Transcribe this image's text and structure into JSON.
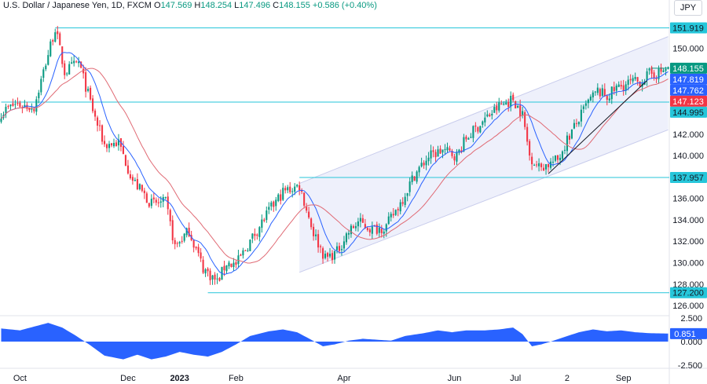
{
  "header": {
    "symbol": "U.S. Dollar / Japanese Yen, 1D, FXCM",
    "open_label": "O",
    "open": "147.569",
    "high_label": "H",
    "high": "148.254",
    "low_label": "L",
    "low": "147.496",
    "close_label": "C",
    "close": "148.155",
    "change": "+0.586 (+0.40%)",
    "currency": "JPY"
  },
  "colors": {
    "up": "#089981",
    "down": "#f23645",
    "level_line": "#26c6da",
    "blue_ma": "#2962ff",
    "red_ma": "#e06a74",
    "oscillator": "#2962ff",
    "channel_fill": "#eef0fb",
    "channel_line": "#c8ccec"
  },
  "chart_data": {
    "type": "candlestick",
    "title": "",
    "ylim": [
      125.2,
      153.2
    ],
    "y_ticks": [
      "126.000",
      "128.000",
      "130.000",
      "132.000",
      "134.000",
      "136.000",
      "138.000",
      "140.000",
      "142.000",
      "150.000"
    ],
    "y_tick_values": [
      126,
      128,
      130,
      132,
      134,
      136,
      138,
      140,
      142,
      150
    ],
    "x_ticks": [
      "Oct",
      "Dec",
      "2023",
      "Feb",
      "Apr",
      "Jun",
      "Jul",
      "2",
      "Sep"
    ],
    "x_tick_bars": [
      8,
      54,
      76,
      100,
      146,
      193,
      219,
      241,
      265
    ],
    "bar_count": 285,
    "anchors": [
      [
        0,
        144.0
      ],
      [
        6,
        144.8
      ],
      [
        14,
        144.5
      ],
      [
        20,
        149.5
      ],
      [
        23,
        151.9
      ],
      [
        27,
        147.8
      ],
      [
        33,
        148.7
      ],
      [
        40,
        143.5
      ],
      [
        44,
        141.0
      ],
      [
        50,
        141.2
      ],
      [
        56,
        137.7
      ],
      [
        64,
        135.5
      ],
      [
        70,
        135.6
      ],
      [
        74,
        131.5
      ],
      [
        80,
        133.0
      ],
      [
        86,
        129.5
      ],
      [
        92,
        128.2
      ],
      [
        96,
        130.0
      ],
      [
        100,
        129.8
      ],
      [
        106,
        132.0
      ],
      [
        114,
        134.8
      ],
      [
        120,
        136.6
      ],
      [
        127,
        137.2
      ],
      [
        133,
        132.8
      ],
      [
        138,
        130.4
      ],
      [
        143,
        131.0
      ],
      [
        147,
        132.6
      ],
      [
        152,
        133.8
      ],
      [
        158,
        133.1
      ],
      [
        164,
        133.4
      ],
      [
        170,
        135.6
      ],
      [
        176,
        138.2
      ],
      [
        182,
        139.9
      ],
      [
        188,
        140.5
      ],
      [
        194,
        140.0
      ],
      [
        198,
        141.6
      ],
      [
        206,
        143.4
      ],
      [
        212,
        144.6
      ],
      [
        218,
        145.3
      ],
      [
        222,
        143.8
      ],
      [
        225,
        140.0
      ],
      [
        229,
        138.9
      ],
      [
        233,
        139.2
      ],
      [
        237,
        139.6
      ],
      [
        241,
        141.5
      ],
      [
        246,
        143.4
      ],
      [
        250,
        145.0
      ],
      [
        254,
        146.0
      ],
      [
        258,
        145.5
      ],
      [
        262,
        146.3
      ],
      [
        268,
        146.8
      ],
      [
        272,
        146.9
      ],
      [
        276,
        147.6
      ],
      [
        280,
        147.7
      ],
      [
        284,
        148.2
      ]
    ],
    "levels": [
      {
        "label": "151.919",
        "value": 151.919,
        "from_bar": 23
      },
      {
        "label": "144.995",
        "value": 144.995,
        "from_bar": 0
      },
      {
        "label": "137.957",
        "value": 137.957,
        "from_bar": 127
      },
      {
        "label": "127.200",
        "value": 127.2,
        "from_bar": 88
      }
    ],
    "price_labels": [
      {
        "label": "148.155",
        "value": 148.155,
        "color": "#089981",
        "line": true
      },
      {
        "label": "147.819",
        "value": 147.819,
        "color": "#2962ff",
        "line": false
      },
      {
        "label": "147.762",
        "value": 147.762,
        "color": "#2962ff",
        "line": false
      },
      {
        "label": "147.123",
        "value": 147.123,
        "color": "#f23645",
        "line": false
      }
    ],
    "channel": {
      "start_bar": 127,
      "end_bar": 285,
      "lower_start": 129.1,
      "lower_end": 142.4,
      "upper_start": 137.4,
      "upper_end": 151.1
    },
    "trendline": {
      "from": [
        233,
        138.3
      ],
      "to": [
        275,
        147.0
      ]
    },
    "oscillator": {
      "ylim": [
        -2.6,
        2.6
      ],
      "ticks": [
        "2.500",
        "0.000",
        "-2.500"
      ],
      "tick_values": [
        2.5,
        0,
        -2.5
      ],
      "last_label": "0.851",
      "last_value": 0.851,
      "anchors": [
        [
          0,
          1.4
        ],
        [
          8,
          1.2
        ],
        [
          14,
          1.6
        ],
        [
          20,
          2.0
        ],
        [
          26,
          1.5
        ],
        [
          32,
          0.6
        ],
        [
          38,
          -0.4
        ],
        [
          44,
          -1.5
        ],
        [
          52,
          -1.9
        ],
        [
          58,
          -1.4
        ],
        [
          64,
          -1.9
        ],
        [
          70,
          -1.6
        ],
        [
          76,
          -1.1
        ],
        [
          82,
          -1.4
        ],
        [
          88,
          -1.6
        ],
        [
          94,
          -1.1
        ],
        [
          100,
          -0.3
        ],
        [
          106,
          0.6
        ],
        [
          114,
          1.1
        ],
        [
          120,
          1.3
        ],
        [
          126,
          1.0
        ],
        [
          132,
          0.2
        ],
        [
          137,
          -0.5
        ],
        [
          142,
          -0.3
        ],
        [
          148,
          0.1
        ],
        [
          154,
          0.3
        ],
        [
          160,
          0.2
        ],
        [
          166,
          0.1
        ],
        [
          172,
          0.6
        ],
        [
          180,
          0.9
        ],
        [
          186,
          1.2
        ],
        [
          192,
          1.0
        ],
        [
          198,
          1.2
        ],
        [
          206,
          1.2
        ],
        [
          212,
          1.3
        ],
        [
          218,
          1.5
        ],
        [
          222,
          0.8
        ],
        [
          226,
          -0.5
        ],
        [
          230,
          -0.3
        ],
        [
          234,
          0.0
        ],
        [
          240,
          0.5
        ],
        [
          246,
          1.0
        ],
        [
          252,
          1.3
        ],
        [
          258,
          1.1
        ],
        [
          264,
          1.2
        ],
        [
          270,
          1.0
        ],
        [
          276,
          0.9
        ],
        [
          285,
          0.85
        ]
      ]
    }
  }
}
